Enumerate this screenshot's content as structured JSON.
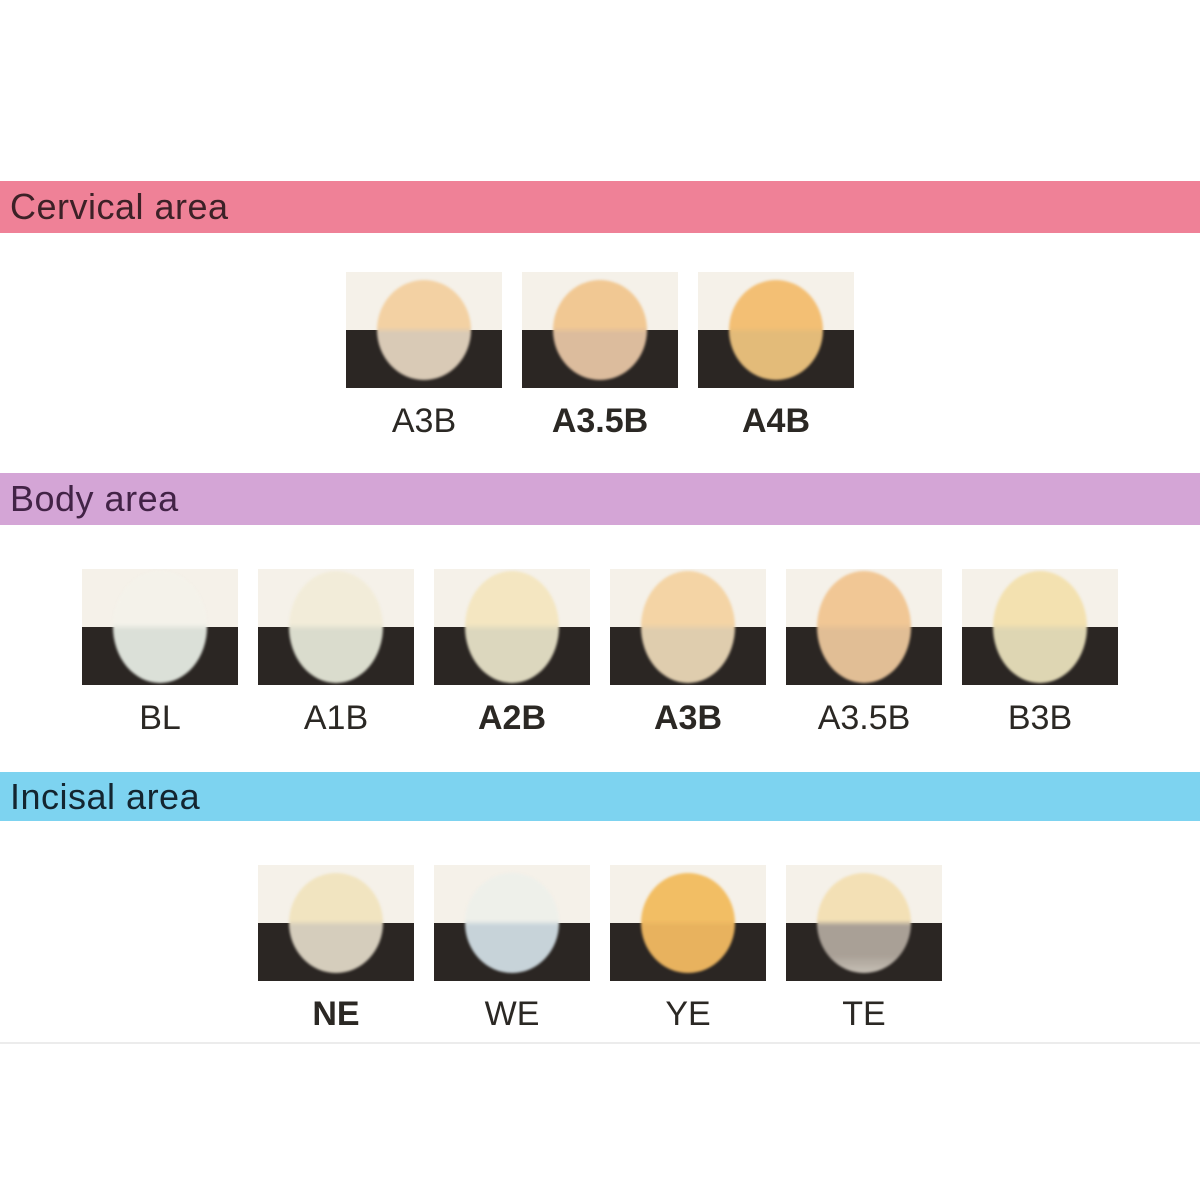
{
  "page": {
    "background": "#ffffff",
    "divider_color": "#ECECEC",
    "chip_light_color": "#F5F1E9",
    "chip_black_color": "#2B2623",
    "label_color": "#2B2824"
  },
  "sections": [
    {
      "id": "cervical",
      "title": "Cervical area",
      "header_bg": "#EF8197",
      "header_text_color": "#3C2127",
      "swatches": [
        {
          "label": "A3B",
          "bold": false,
          "top_color": "#F3D1A3",
          "bottom_color": "#D9CAB6"
        },
        {
          "label": "A3.5B",
          "bold": true,
          "top_color": "#F1C893",
          "bottom_color": "#DCBC9D"
        },
        {
          "label": "A4B",
          "bold": true,
          "top_color": "#F3BF74",
          "bottom_color": "#E3BB79"
        }
      ]
    },
    {
      "id": "body",
      "title": "Body area",
      "header_bg": "#D4A5D6",
      "header_text_color": "#422346",
      "swatches": [
        {
          "label": "BL",
          "bold": false,
          "top_color": "#F4F2EA",
          "bottom_color": "#DBE0D8"
        },
        {
          "label": "A1B",
          "bold": false,
          "top_color": "#F2ECD9",
          "bottom_color": "#DADCCD"
        },
        {
          "label": "A2B",
          "bold": true,
          "top_color": "#F4E6C1",
          "bottom_color": "#DCD7BE"
        },
        {
          "label": "A3B",
          "bold": true,
          "top_color": "#F4D4A5",
          "bottom_color": "#DFCDAE"
        },
        {
          "label": "A3.5B",
          "bold": false,
          "top_color": "#F1C795",
          "bottom_color": "#E1BE95"
        },
        {
          "label": "B3B",
          "bold": false,
          "top_color": "#F3E1B0",
          "bottom_color": "#DED6B3"
        }
      ]
    },
    {
      "id": "incisal",
      "title": "Incisal area",
      "header_bg": "#7DD3F0",
      "header_text_color": "#132530",
      "swatches": [
        {
          "label": "NE",
          "bold": true,
          "top_color": "#F1E4C0",
          "bottom_color": "#D5CDBC"
        },
        {
          "label": "WE",
          "bold": false,
          "top_color": "#EEF0EA",
          "bottom_color": "#C7D3D9"
        },
        {
          "label": "YE",
          "bold": false,
          "top_color": "#F2BE64",
          "bottom_color": "#E8B25E"
        },
        {
          "label": "TE",
          "bold": false,
          "top_color": "#F3E0B5",
          "bottom_color": "#A9A096",
          "bottom_color2": "#C6BFB5"
        }
      ]
    }
  ]
}
